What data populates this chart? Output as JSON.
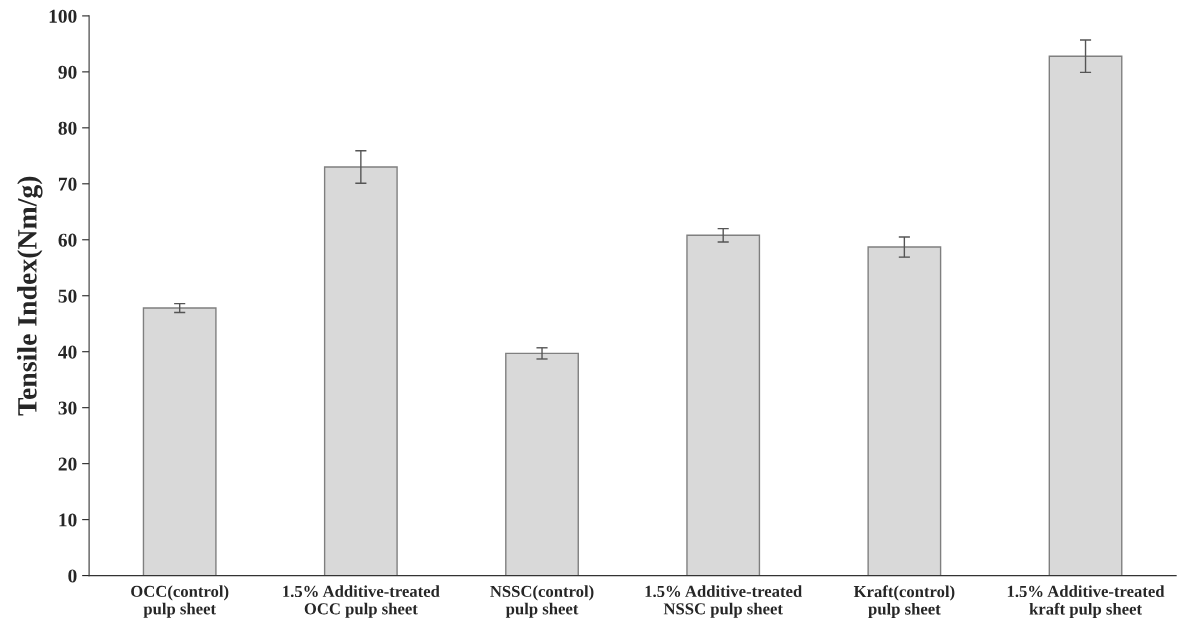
{
  "chart_data": {
    "type": "bar",
    "ylabel": "Tensile Index(Nm/g)",
    "categories": [
      "OCC(control)\npulp sheet",
      "1.5% Additive-treated\nOCC pulp sheet",
      "NSSC(control)\npulp sheet",
      "1.5% Additive-treated\nNSSC pulp sheet",
      "Kraft(control)\npulp sheet",
      "1.5% Additive-treated\nkraft pulp sheet"
    ],
    "values": [
      47.8,
      73.0,
      39.7,
      60.8,
      58.7,
      92.8
    ],
    "errors": [
      0.8,
      2.9,
      1.0,
      1.2,
      1.8,
      2.9
    ],
    "color": "#d9d9d9",
    "ylim": [
      0,
      100
    ],
    "yticks": [
      0,
      10,
      20,
      30,
      40,
      50,
      60,
      70,
      80,
      90,
      100
    ],
    "grid": false
  }
}
